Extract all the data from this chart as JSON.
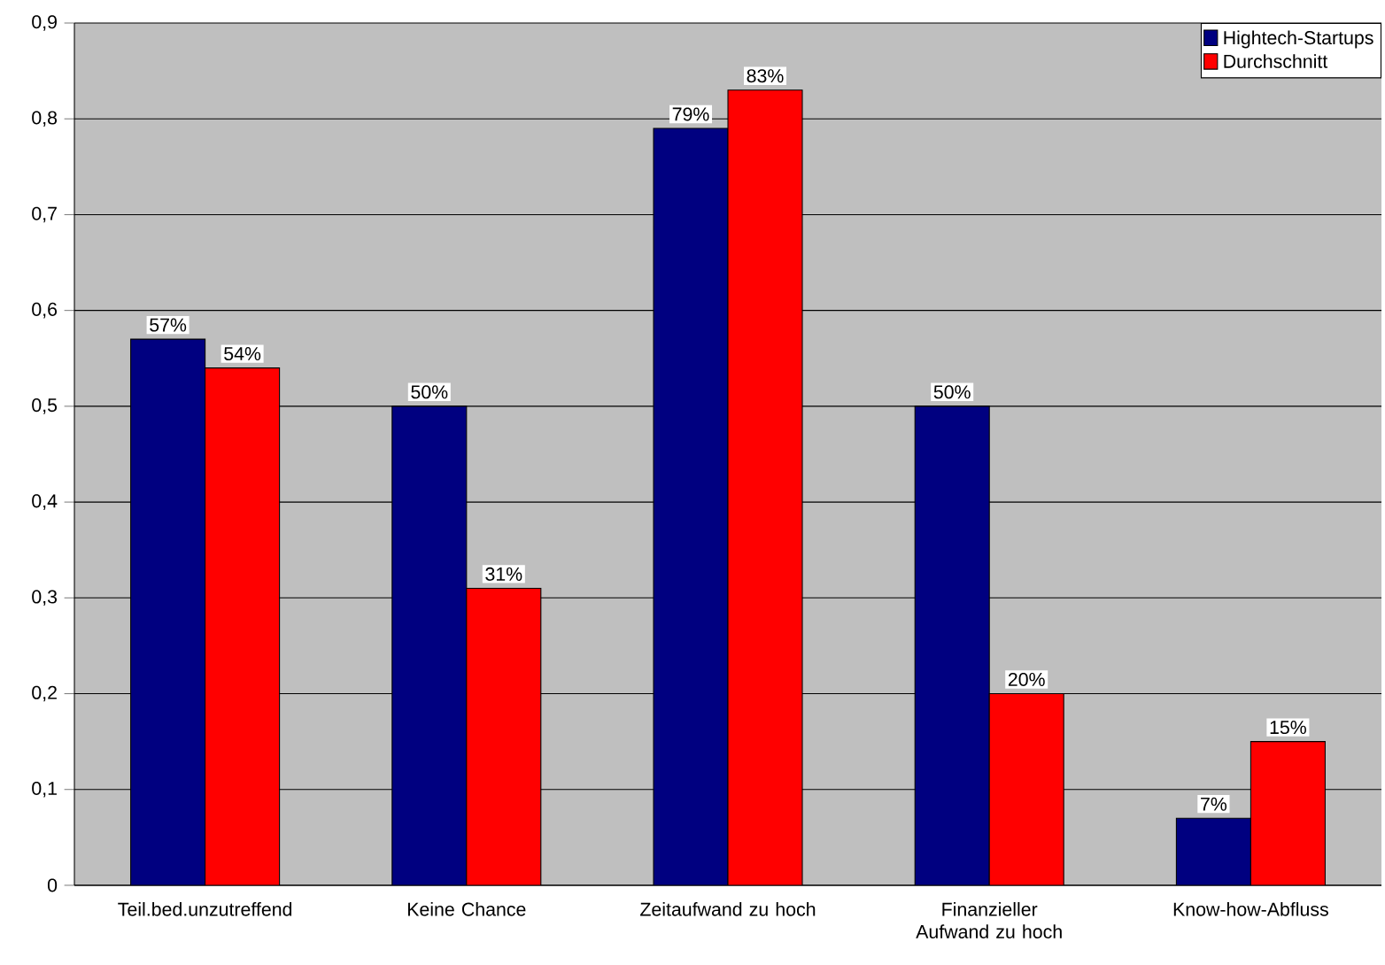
{
  "chart_data": {
    "type": "bar",
    "categories": [
      "Teil.bed.unzutreffend",
      "Keine Chance",
      "Zeitaufwand zu hoch",
      "Finanzieller Aufwand zu hoch",
      "Know-how-Abfluss"
    ],
    "series": [
      {
        "name": "Hightech-Startups",
        "color": "#000080",
        "values": [
          0.57,
          0.5,
          0.79,
          0.5,
          0.07
        ],
        "value_labels": [
          "57%",
          "50%",
          "79%",
          "50%",
          "7%"
        ]
      },
      {
        "name": "Durchschnitt",
        "color": "#ff0000",
        "values": [
          0.54,
          0.31,
          0.83,
          0.2,
          0.15
        ],
        "value_labels": [
          "54%",
          "31%",
          "83%",
          "20%",
          "15%"
        ]
      }
    ],
    "ylim": [
      0,
      0.9
    ],
    "yticks": [
      {
        "value": 0,
        "label": "0"
      },
      {
        "value": 0.1,
        "label": "0,1"
      },
      {
        "value": 0.2,
        "label": "0,2"
      },
      {
        "value": 0.3,
        "label": "0,3"
      },
      {
        "value": 0.4,
        "label": "0,4"
      },
      {
        "value": 0.5,
        "label": "0,5"
      },
      {
        "value": 0.6,
        "label": "0,6"
      },
      {
        "value": 0.7,
        "label": "0,7"
      },
      {
        "value": 0.8,
        "label": "0,8"
      },
      {
        "value": 0.9,
        "label": "0,9"
      }
    ],
    "grid": "y",
    "legend": "top right"
  }
}
